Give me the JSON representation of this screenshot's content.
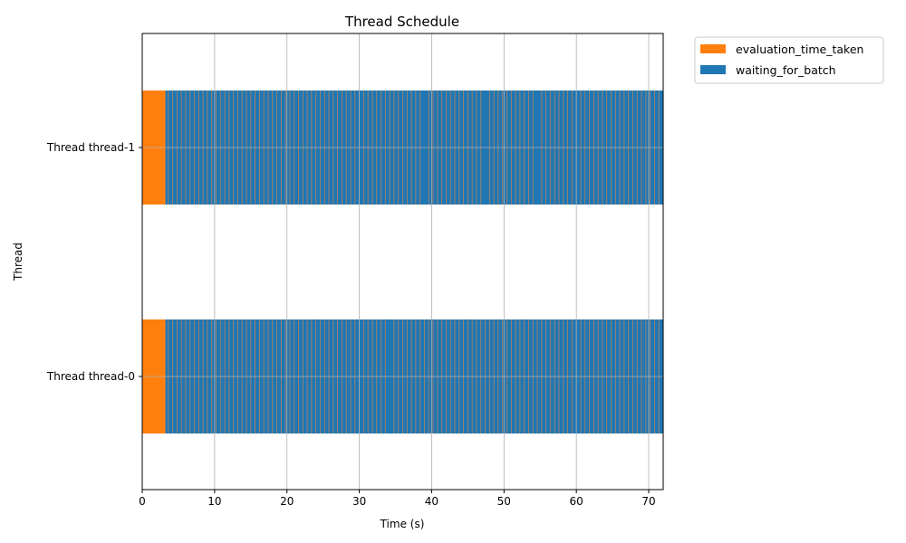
{
  "chart_data": {
    "type": "bar",
    "orientation": "horizontal",
    "title": "Thread Schedule",
    "xlabel": "Time (s)",
    "ylabel": "Thread",
    "xlim": [
      0,
      72
    ],
    "xticks": [
      "0",
      "10",
      "20",
      "30",
      "40",
      "50",
      "60",
      "70"
    ],
    "categories": [
      "Thread thread-0",
      "Thread thread-1"
    ],
    "grid": true,
    "legend_position": "outside-top-right",
    "series": [
      {
        "name": "evaluation_time_taken",
        "color": "#ff7f0e",
        "bars": [
          {
            "thread": "Thread thread-0",
            "start": 0,
            "duration": 3.2
          },
          {
            "thread": "Thread thread-1",
            "start": 0,
            "duration": 3.2
          }
        ]
      },
      {
        "name": "waiting_for_batch",
        "color": "#1f77b4",
        "bars": [
          {
            "thread": "Thread thread-0",
            "start": 3.2,
            "duration": 68.8
          },
          {
            "thread": "Thread thread-1",
            "start": 3.2,
            "duration": 68.8
          }
        ]
      }
    ],
    "evaluation_marks": {
      "Thread thread-0": [
        5.6,
        7.6,
        15.8,
        16.6,
        34.2,
        55.0
      ],
      "Thread thread-1": [
        4.0,
        5.0,
        7.0,
        16.0,
        26.2,
        39.0,
        47.4,
        54.6,
        67.0
      ]
    }
  },
  "legend": {
    "items": [
      {
        "label": "evaluation_time_taken",
        "color": "#ff7f0e"
      },
      {
        "label": "waiting_for_batch",
        "color": "#1f77b4"
      }
    ]
  }
}
